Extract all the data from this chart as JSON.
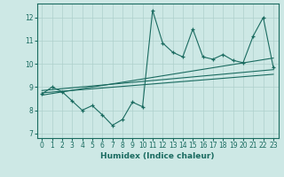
{
  "xlabel": "Humidex (Indice chaleur)",
  "ylabel": "",
  "bg_color": "#cde8e5",
  "line_color": "#1a6b60",
  "grid_color": "#aed0cc",
  "x_data": [
    0,
    1,
    2,
    3,
    4,
    5,
    6,
    7,
    8,
    9,
    10,
    11,
    12,
    13,
    14,
    15,
    16,
    17,
    18,
    19,
    20,
    21,
    22,
    23
  ],
  "y_data": [
    8.7,
    9.0,
    8.8,
    8.4,
    8.0,
    8.2,
    7.8,
    7.35,
    7.6,
    8.35,
    8.15,
    12.3,
    10.9,
    10.5,
    10.3,
    11.5,
    10.3,
    10.2,
    10.4,
    10.15,
    10.05,
    11.2,
    12.0,
    9.85
  ],
  "trend1_x": [
    0,
    23
  ],
  "trend1_y": [
    8.65,
    10.25
  ],
  "trend2_x": [
    0,
    23
  ],
  "trend2_y": [
    8.85,
    9.75
  ],
  "trend3_x": [
    0,
    23
  ],
  "trend3_y": [
    8.75,
    9.55
  ],
  "xlim": [
    -0.5,
    23.5
  ],
  "ylim": [
    6.8,
    12.6
  ],
  "yticks": [
    7,
    8,
    9,
    10,
    11,
    12
  ],
  "xticks": [
    0,
    1,
    2,
    3,
    4,
    5,
    6,
    7,
    8,
    9,
    10,
    11,
    12,
    13,
    14,
    15,
    16,
    17,
    18,
    19,
    20,
    21,
    22,
    23
  ],
  "axis_fontsize": 6.5,
  "tick_fontsize": 5.5
}
